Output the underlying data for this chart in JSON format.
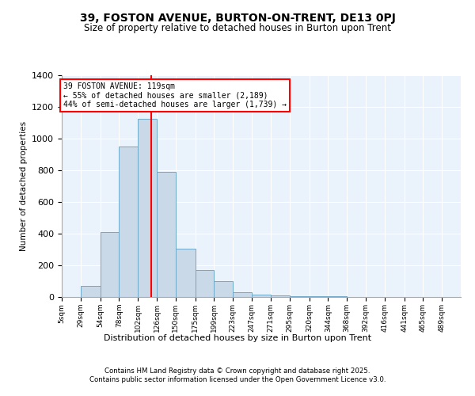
{
  "title1": "39, FOSTON AVENUE, BURTON-ON-TRENT, DE13 0PJ",
  "title2": "Size of property relative to detached houses in Burton upon Trent",
  "xlabel": "Distribution of detached houses by size in Burton upon Trent",
  "ylabel": "Number of detached properties",
  "bar_edges": [
    5,
    29,
    54,
    78,
    102,
    126,
    150,
    175,
    199,
    223,
    247,
    271,
    295,
    320,
    344,
    368,
    392,
    416,
    441,
    465,
    489
  ],
  "bar_heights": [
    0,
    70,
    410,
    950,
    1125,
    790,
    305,
    170,
    100,
    32,
    15,
    10,
    5,
    5,
    3,
    2,
    1,
    1,
    1,
    1
  ],
  "bar_color": "#c9d9e8",
  "bar_edge_color": "#6fa8c8",
  "vline_x": 119,
  "vline_color": "red",
  "annotation_line1": "39 FOSTON AVENUE: 119sqm",
  "annotation_line2": "← 55% of detached houses are smaller (2,189)",
  "annotation_line3": "44% of semi-detached houses are larger (1,739) →",
  "annotation_box_color": "white",
  "annotation_box_edge_color": "red",
  "ylim": [
    0,
    1400
  ],
  "yticks": [
    0,
    200,
    400,
    600,
    800,
    1000,
    1200,
    1400
  ],
  "bg_color": "#eaf2fb",
  "footer1": "Contains HM Land Registry data © Crown copyright and database right 2025.",
  "footer2": "Contains public sector information licensed under the Open Government Licence v3.0.",
  "tick_labels": [
    "5sqm",
    "29sqm",
    "54sqm",
    "78sqm",
    "102sqm",
    "126sqm",
    "150sqm",
    "175sqm",
    "199sqm",
    "223sqm",
    "247sqm",
    "271sqm",
    "295sqm",
    "320sqm",
    "344sqm",
    "368sqm",
    "392sqm",
    "416sqm",
    "441sqm",
    "465sqm",
    "489sqm"
  ]
}
